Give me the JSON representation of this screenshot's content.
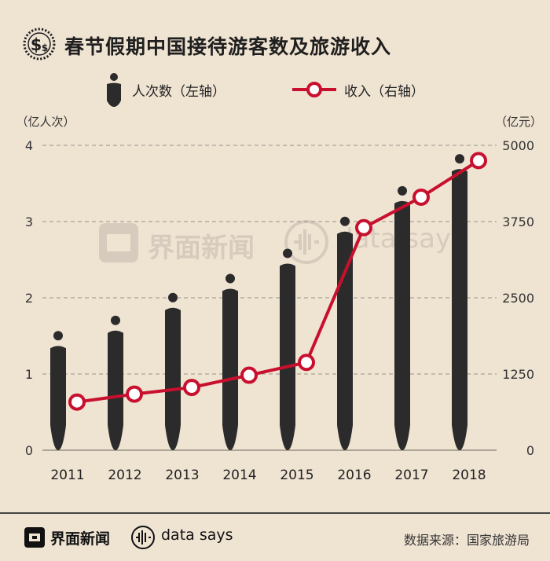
{
  "header": {
    "title": "春节假期中国接待游客数及旅游收入",
    "icon": "dollar-badge-icon"
  },
  "legend": {
    "people_label": "人次数（左轴）",
    "revenue_label": "收入（右轴）",
    "people_icon": "person-silhouette-icon",
    "revenue_icon": "line-circle-marker-icon"
  },
  "watermark": {
    "brand_cn": "界面新闻",
    "brand_en": "data says"
  },
  "colors": {
    "background": "#efe3d2",
    "people": "#2b2b2b",
    "revenue": "#c8102e",
    "grid": "#9a9088"
  },
  "chart_data": {
    "type": "bar",
    "categories": [
      "2011",
      "2012",
      "2013",
      "2014",
      "2015",
      "2016",
      "2017",
      "2018"
    ],
    "series": [
      {
        "name": "人次数",
        "axis": "left",
        "render": "person-bar",
        "values": [
          1.4,
          1.6,
          1.9,
          2.15,
          2.48,
          2.9,
          3.3,
          3.72
        ]
      },
      {
        "name": "收入",
        "axis": "right",
        "render": "line",
        "values": [
          790,
          920,
          1030,
          1230,
          1440,
          3650,
          4150,
          4750
        ]
      }
    ],
    "y_left": {
      "label": "（亿人次）",
      "ticks": [
        "0",
        "1",
        "2",
        "3",
        "4"
      ],
      "range": [
        0,
        4
      ]
    },
    "y_right": {
      "label": "（亿元）",
      "ticks": [
        "0",
        "1250",
        "2500",
        "3750",
        "5000"
      ],
      "range": [
        0,
        5000
      ]
    },
    "grid": true,
    "legend": "top"
  },
  "footer": {
    "brand_cn": "界面新闻",
    "brand_en": "data says",
    "source": "数据来源：国家旅游局"
  }
}
